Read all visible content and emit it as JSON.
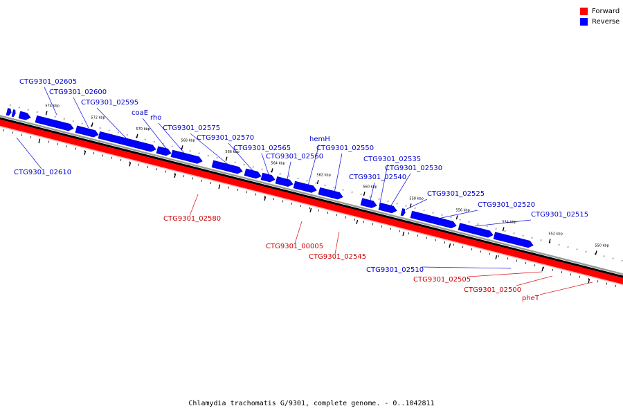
{
  "caption": "Chlamydia trachomatis G/9301, complete genome. - 0..1042811",
  "legend": [
    {
      "label": "Forward",
      "color": "#ff0000"
    },
    {
      "label": "Reverse",
      "color": "#0000ff"
    }
  ],
  "colors": {
    "forward": "#ff0000",
    "reverse": "#0000ff",
    "backbone": "#000000"
  },
  "ticks": [
    "574 kbp",
    "572 kbp",
    "570 kbp",
    "568 kbp",
    "566 kbp",
    "564 kbp",
    "562 kbp",
    "560 kbp",
    "558 kbp",
    "556 kbp",
    "554 kbp",
    "552 kbp",
    "550 kbp"
  ],
  "genes": [
    {
      "label": "CTG9301_02605",
      "strand": "reverse"
    },
    {
      "label": "CTG9301_02600",
      "strand": "reverse"
    },
    {
      "label": "CTG9301_02595",
      "strand": "reverse"
    },
    {
      "label": "coaE",
      "strand": "reverse"
    },
    {
      "label": "rho",
      "strand": "reverse"
    },
    {
      "label": "CTG9301_02575",
      "strand": "reverse"
    },
    {
      "label": "CTG9301_02570",
      "strand": "reverse"
    },
    {
      "label": "CTG9301_02565",
      "strand": "reverse"
    },
    {
      "label": "CTG9301_02560",
      "strand": "reverse"
    },
    {
      "label": "hemH",
      "strand": "reverse"
    },
    {
      "label": "CTG9301_02550",
      "strand": "reverse"
    },
    {
      "label": "CTG9301_02535",
      "strand": "reverse"
    },
    {
      "label": "CTG9301_02530",
      "strand": "reverse"
    },
    {
      "label": "CTG9301_02540",
      "strand": "reverse"
    },
    {
      "label": "CTG9301_02525",
      "strand": "reverse"
    },
    {
      "label": "CTG9301_02520",
      "strand": "reverse"
    },
    {
      "label": "CTG9301_02515",
      "strand": "reverse"
    },
    {
      "label": "CTG9301_02610",
      "strand": "reverse"
    },
    {
      "label": "CTG9301_02580",
      "strand": "forward"
    },
    {
      "label": "CTG9301_00005",
      "strand": "forward"
    },
    {
      "label": "CTG9301_02545",
      "strand": "forward"
    },
    {
      "label": "CTG9301_02510",
      "strand": "reverse"
    },
    {
      "label": "CTG9301_02505",
      "strand": "forward"
    },
    {
      "label": "CTG9301_02500",
      "strand": "forward"
    },
    {
      "label": "pheT",
      "strand": "forward"
    }
  ]
}
